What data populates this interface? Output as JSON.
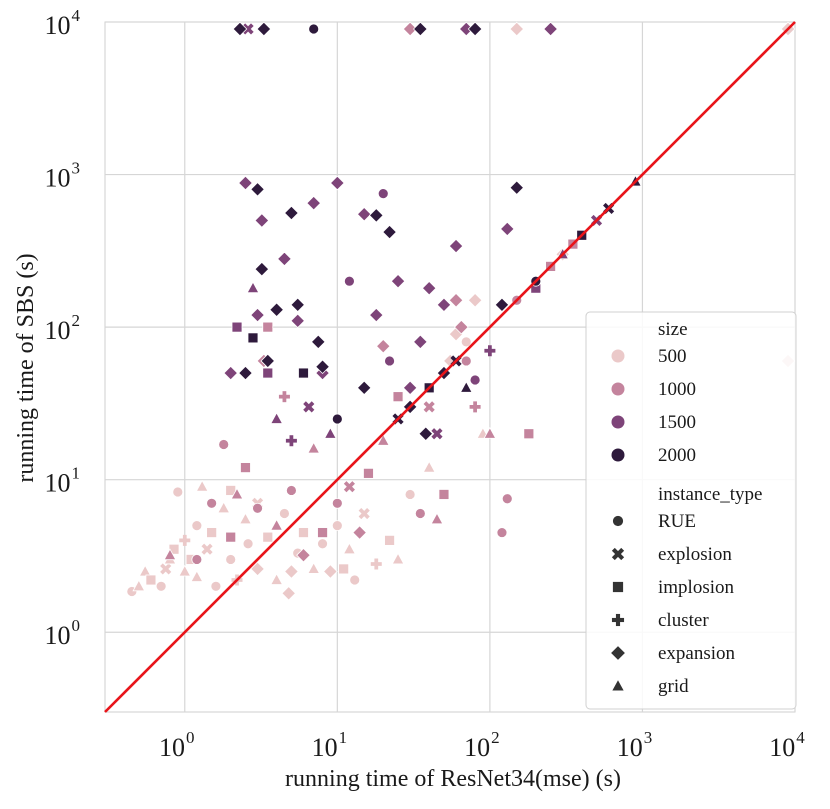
{
  "chart_data": {
    "type": "scatter",
    "xlabel": "running time of ResNet34(mse) (s)",
    "ylabel": "running time of SBS (s)",
    "xscale": "log",
    "yscale": "log",
    "xlim": [
      0.3,
      10000
    ],
    "ylim": [
      0.3,
      10000
    ],
    "grid": true,
    "x_ticks": [
      {
        "base": "10",
        "exp": "0"
      },
      {
        "base": "10",
        "exp": "1"
      },
      {
        "base": "10",
        "exp": "2"
      },
      {
        "base": "10",
        "exp": "3"
      },
      {
        "base": "10",
        "exp": "4"
      }
    ],
    "y_ticks": [
      {
        "base": "10",
        "exp": "0"
      },
      {
        "base": "10",
        "exp": "1"
      },
      {
        "base": "10",
        "exp": "2"
      },
      {
        "base": "10",
        "exp": "3"
      },
      {
        "base": "10",
        "exp": "4"
      }
    ],
    "reference_line": {
      "description": "y = x",
      "color": "#e8141a"
    },
    "legend": {
      "position": "center-right",
      "size_title": "size",
      "sizes": [
        {
          "label": "500",
          "color": "#ebc9c9"
        },
        {
          "label": "1000",
          "color": "#c4849d"
        },
        {
          "label": "1500",
          "color": "#7e4479"
        },
        {
          "label": "2000",
          "color": "#2e1a3c"
        }
      ],
      "type_title": "instance_type",
      "types": [
        {
          "label": "RUE",
          "marker": "circle"
        },
        {
          "label": "explosion",
          "marker": "x"
        },
        {
          "label": "implosion",
          "marker": "square"
        },
        {
          "label": "cluster",
          "marker": "plus"
        },
        {
          "label": "expansion",
          "marker": "diamond"
        },
        {
          "label": "grid",
          "marker": "triangle"
        }
      ]
    },
    "series": [
      {
        "size": "500",
        "points": [
          [
            0.45,
            1.85,
            "circle"
          ],
          [
            0.5,
            2.0,
            "triangle"
          ],
          [
            0.55,
            2.5,
            "triangle"
          ],
          [
            0.6,
            2.2,
            "square"
          ],
          [
            0.7,
            2.0,
            "circle"
          ],
          [
            0.75,
            2.6,
            "x"
          ],
          [
            0.8,
            3.0,
            "triangle"
          ],
          [
            0.85,
            3.5,
            "square"
          ],
          [
            0.9,
            8.3,
            "circle"
          ],
          [
            1.0,
            2.5,
            "triangle"
          ],
          [
            1.0,
            4.0,
            "plus"
          ],
          [
            1.1,
            3.0,
            "square"
          ],
          [
            1.2,
            2.3,
            "triangle"
          ],
          [
            1.2,
            5.0,
            "circle"
          ],
          [
            1.3,
            9.0,
            "triangle"
          ],
          [
            1.4,
            3.5,
            "x"
          ],
          [
            1.5,
            4.5,
            "square"
          ],
          [
            1.6,
            2.0,
            "circle"
          ],
          [
            1.8,
            6.5,
            "triangle"
          ],
          [
            2.0,
            3.0,
            "circle"
          ],
          [
            2.0,
            8.5,
            "square"
          ],
          [
            2.2,
            2.2,
            "plus"
          ],
          [
            2.5,
            5.5,
            "triangle"
          ],
          [
            2.6,
            3.8,
            "circle"
          ],
          [
            3.0,
            2.6,
            "diamond"
          ],
          [
            3.0,
            7.0,
            "x"
          ],
          [
            3.5,
            4.2,
            "square"
          ],
          [
            4.0,
            2.2,
            "triangle"
          ],
          [
            4.5,
            6.0,
            "circle"
          ],
          [
            4.8,
            1.8,
            "diamond"
          ],
          [
            5.0,
            2.5,
            "diamond"
          ],
          [
            5.5,
            3.3,
            "circle"
          ],
          [
            6.0,
            4.5,
            "square"
          ],
          [
            7.0,
            2.6,
            "triangle"
          ],
          [
            8.0,
            3.8,
            "circle"
          ],
          [
            9.0,
            2.5,
            "diamond"
          ],
          [
            10.0,
            5.0,
            "circle"
          ],
          [
            11.0,
            2.6,
            "square"
          ],
          [
            12.0,
            3.5,
            "triangle"
          ],
          [
            13.0,
            2.2,
            "circle"
          ],
          [
            15.0,
            6.0,
            "x"
          ],
          [
            18.0,
            2.8,
            "plus"
          ],
          [
            22.0,
            4.0,
            "square"
          ],
          [
            25.0,
            3.0,
            "triangle"
          ],
          [
            30.0,
            8.0,
            "circle"
          ],
          [
            40.0,
            12.0,
            "triangle"
          ],
          [
            55.0,
            60.0,
            "diamond"
          ],
          [
            60.0,
            90.0,
            "diamond"
          ],
          [
            70.0,
            80.0,
            "circle"
          ],
          [
            80.0,
            150.0,
            "diamond"
          ],
          [
            90.0,
            20.0,
            "triangle"
          ],
          [
            150.0,
            9000.0,
            "diamond"
          ],
          [
            300.0,
            300.0,
            "diamond"
          ],
          [
            9000.0,
            9000.0,
            "diamond"
          ],
          [
            9000.0,
            60.0,
            "diamond"
          ]
        ]
      },
      {
        "size": "1000",
        "points": [
          [
            0.8,
            3.2,
            "triangle"
          ],
          [
            1.2,
            3.0,
            "circle"
          ],
          [
            1.5,
            7.0,
            "circle"
          ],
          [
            1.8,
            17.0,
            "circle"
          ],
          [
            2.0,
            4.2,
            "square"
          ],
          [
            2.2,
            8.0,
            "triangle"
          ],
          [
            2.5,
            12.0,
            "square"
          ],
          [
            3.0,
            6.5,
            "circle"
          ],
          [
            3.3,
            60.0,
            "diamond"
          ],
          [
            3.5,
            100.0,
            "square"
          ],
          [
            4.0,
            5.0,
            "triangle"
          ],
          [
            4.5,
            35.0,
            "plus"
          ],
          [
            5.0,
            8.5,
            "circle"
          ],
          [
            6.0,
            3.2,
            "diamond"
          ],
          [
            7.0,
            16.0,
            "triangle"
          ],
          [
            8.0,
            4.5,
            "square"
          ],
          [
            10.0,
            7.0,
            "circle"
          ],
          [
            12.0,
            9.0,
            "x"
          ],
          [
            14.0,
            4.5,
            "diamond"
          ],
          [
            16.0,
            11.0,
            "square"
          ],
          [
            20.0,
            18.0,
            "triangle"
          ],
          [
            20.0,
            75.0,
            "diamond"
          ],
          [
            25.0,
            35.0,
            "square"
          ],
          [
            30.0,
            9000.0,
            "diamond"
          ],
          [
            35.0,
            6.0,
            "circle"
          ],
          [
            40.0,
            30.0,
            "x"
          ],
          [
            45.0,
            5.5,
            "triangle"
          ],
          [
            50.0,
            8.0,
            "square"
          ],
          [
            60.0,
            150.0,
            "diamond"
          ],
          [
            65.0,
            100.0,
            "diamond"
          ],
          [
            70.0,
            60.0,
            "circle"
          ],
          [
            80.0,
            30.0,
            "plus"
          ],
          [
            100.0,
            20.0,
            "triangle"
          ],
          [
            120.0,
            4.5,
            "circle"
          ],
          [
            130.0,
            7.5,
            "circle"
          ],
          [
            150.0,
            150.0,
            "circle"
          ],
          [
            180.0,
            20.0,
            "square"
          ],
          [
            250.0,
            250.0,
            "square"
          ],
          [
            350.0,
            350.0,
            "square"
          ]
        ]
      },
      {
        "size": "1500",
        "points": [
          [
            2.0,
            50.0,
            "diamond"
          ],
          [
            2.2,
            100.0,
            "square"
          ],
          [
            2.5,
            880.0,
            "diamond"
          ],
          [
            2.6,
            9000.0,
            "x"
          ],
          [
            2.8,
            180.0,
            "triangle"
          ],
          [
            3.0,
            120.0,
            "diamond"
          ],
          [
            3.2,
            500.0,
            "diamond"
          ],
          [
            3.5,
            50.0,
            "square"
          ],
          [
            4.0,
            25.0,
            "triangle"
          ],
          [
            4.5,
            280.0,
            "diamond"
          ],
          [
            5.0,
            18.0,
            "plus"
          ],
          [
            5.5,
            110.0,
            "diamond"
          ],
          [
            6.0,
            50.0,
            "circle"
          ],
          [
            6.5,
            30.0,
            "x"
          ],
          [
            7.0,
            650.0,
            "diamond"
          ],
          [
            8.0,
            50.0,
            "diamond"
          ],
          [
            9.0,
            20.0,
            "triangle"
          ],
          [
            10.0,
            880.0,
            "diamond"
          ],
          [
            12.0,
            200.0,
            "circle"
          ],
          [
            15.0,
            550.0,
            "diamond"
          ],
          [
            18.0,
            120.0,
            "diamond"
          ],
          [
            20.0,
            750.0,
            "circle"
          ],
          [
            22.0,
            60.0,
            "circle"
          ],
          [
            25.0,
            200.0,
            "diamond"
          ],
          [
            30.0,
            40.0,
            "diamond"
          ],
          [
            35.0,
            80.0,
            "diamond"
          ],
          [
            40.0,
            180.0,
            "diamond"
          ],
          [
            45.0,
            20.0,
            "x"
          ],
          [
            50.0,
            140.0,
            "diamond"
          ],
          [
            60.0,
            340.0,
            "diamond"
          ],
          [
            70.0,
            9000.0,
            "diamond"
          ],
          [
            80.0,
            45.0,
            "circle"
          ],
          [
            100.0,
            70.0,
            "plus"
          ],
          [
            130.0,
            440.0,
            "diamond"
          ],
          [
            200.0,
            180.0,
            "square"
          ],
          [
            250.0,
            9000.0,
            "diamond"
          ],
          [
            300.0,
            300.0,
            "triangle"
          ],
          [
            500.0,
            500.0,
            "x"
          ]
        ]
      },
      {
        "size": "2000",
        "points": [
          [
            2.3,
            9000.0,
            "diamond"
          ],
          [
            2.5,
            50.0,
            "diamond"
          ],
          [
            2.8,
            85.0,
            "square"
          ],
          [
            3.0,
            800.0,
            "diamond"
          ],
          [
            3.2,
            240.0,
            "diamond"
          ],
          [
            3.3,
            9000.0,
            "diamond"
          ],
          [
            3.5,
            60.0,
            "diamond"
          ],
          [
            4.0,
            130.0,
            "diamond"
          ],
          [
            5.0,
            560.0,
            "diamond"
          ],
          [
            5.5,
            140.0,
            "diamond"
          ],
          [
            6.0,
            50.0,
            "square"
          ],
          [
            7.0,
            9000.0,
            "circle"
          ],
          [
            7.5,
            80.0,
            "diamond"
          ],
          [
            8.0,
            55.0,
            "diamond"
          ],
          [
            10.0,
            25.0,
            "circle"
          ],
          [
            15.0,
            40.0,
            "diamond"
          ],
          [
            18.0,
            540.0,
            "diamond"
          ],
          [
            22.0,
            420.0,
            "diamond"
          ],
          [
            25.0,
            25.0,
            "x"
          ],
          [
            30.0,
            30.0,
            "diamond"
          ],
          [
            35.0,
            9000.0,
            "diamond"
          ],
          [
            38.0,
            20.0,
            "diamond"
          ],
          [
            40.0,
            40.0,
            "square"
          ],
          [
            50.0,
            50.0,
            "diamond"
          ],
          [
            60.0,
            60.0,
            "x"
          ],
          [
            70.0,
            40.0,
            "triangle"
          ],
          [
            80.0,
            9000.0,
            "diamond"
          ],
          [
            120.0,
            140.0,
            "diamond"
          ],
          [
            150.0,
            820.0,
            "diamond"
          ],
          [
            200.0,
            200.0,
            "circle"
          ],
          [
            400.0,
            400.0,
            "square"
          ],
          [
            600.0,
            600.0,
            "x"
          ],
          [
            900.0,
            900.0,
            "triangle"
          ]
        ]
      }
    ]
  }
}
